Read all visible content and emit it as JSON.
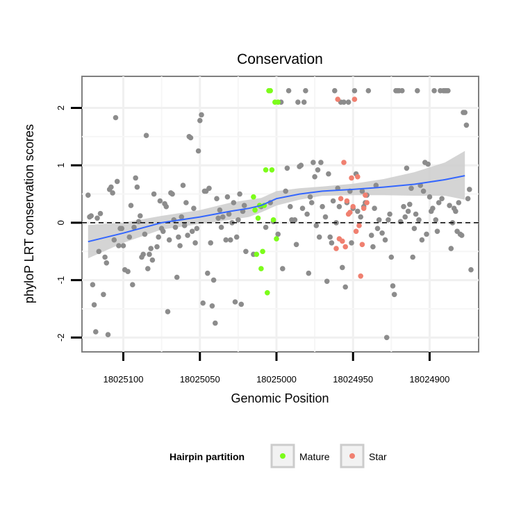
{
  "chart_data": {
    "type": "scatter",
    "title": "Conservation",
    "xlabel": "Genomic Position",
    "ylabel": "phyloP LRT conservation scores",
    "x_reversed": true,
    "xlim": [
      18025127,
      18024868
    ],
    "ylim": [
      -2.25,
      2.55
    ],
    "x_ticks": [
      18025100,
      18025050,
      18025000,
      18024950,
      18024900
    ],
    "x_tick_labels": [
      "18025100",
      "18025050",
      "18025000",
      "18024950",
      "18024900"
    ],
    "y_ticks": [
      -2,
      -1,
      0,
      1,
      2
    ],
    "y_tick_labels": [
      "-2",
      "-1",
      "0",
      "1",
      "2"
    ],
    "hline": 0,
    "grid": true,
    "legend": {
      "title": "Hairpin partition",
      "position": "bottom",
      "items": [
        {
          "label": "Mature",
          "color": "#7CFC1A"
        },
        {
          "label": "Star",
          "color": "#F08070"
        }
      ]
    },
    "colors": {
      "other": "#8C8C8C",
      "mature": "#7CFC1A",
      "star": "#F08070",
      "smooth_line": "#3366FF",
      "ribbon": "#CCCCCC"
    },
    "series": [
      {
        "group": "other",
        "points": [
          [
            18025123,
            0.48
          ],
          [
            18025122,
            0.1
          ],
          [
            18025121,
            0.12
          ],
          [
            18025120,
            -1.08
          ],
          [
            18025119,
            -1.43
          ],
          [
            18025118,
            -1.9
          ],
          [
            18025117,
            0.08
          ],
          [
            18025116,
            -0.5
          ],
          [
            18025115,
            0.16
          ],
          [
            18025113,
            -1.25
          ],
          [
            18025112,
            -0.6
          ],
          [
            18025111,
            -0.7
          ],
          [
            18025110,
            -1.95
          ],
          [
            18025109,
            0.58
          ],
          [
            18025108,
            0.62
          ],
          [
            18025107,
            0.52
          ],
          [
            18025106,
            -0.3
          ],
          [
            18025105,
            1.83
          ],
          [
            18025104,
            0.72
          ],
          [
            18025103,
            -0.4
          ],
          [
            18025102,
            -0.1
          ],
          [
            18025101,
            -0.1
          ],
          [
            18025100,
            -0.4
          ],
          [
            18025099,
            -0.82
          ],
          [
            18025097,
            -0.85
          ],
          [
            18025096,
            -0.25
          ],
          [
            18025095,
            0.3
          ],
          [
            18025094,
            -1.08
          ],
          [
            18025093,
            -0.08
          ],
          [
            18025092,
            0.78
          ],
          [
            18025091,
            0.62
          ],
          [
            18025090,
            0.02
          ],
          [
            18025089,
            0.12
          ],
          [
            18025088,
            -0.6
          ],
          [
            18025087,
            -0.55
          ],
          [
            18025086,
            -0.2
          ],
          [
            18025085,
            1.52
          ],
          [
            18025084,
            -0.8
          ],
          [
            18025083,
            -0.55
          ],
          [
            18025082,
            -0.45
          ],
          [
            18025081,
            -0.65
          ],
          [
            18025080,
            0.5
          ],
          [
            18025078,
            -0.42
          ],
          [
            18025077,
            -0.25
          ],
          [
            18025076,
            0.38
          ],
          [
            18025075,
            -0.1
          ],
          [
            18025074,
            -0.15
          ],
          [
            18025073,
            0.33
          ],
          [
            18025072,
            0.28
          ],
          [
            18025071,
            -1.55
          ],
          [
            18025070,
            -0.3
          ],
          [
            18025069,
            0.52
          ],
          [
            18025068,
            0.5
          ],
          [
            18025067,
            0.05
          ],
          [
            18025066,
            -0.08
          ],
          [
            18025065,
            -0.95
          ],
          [
            18025064,
            -0.25
          ],
          [
            18025063,
            -0.4
          ],
          [
            18025062,
            0.1
          ],
          [
            18025061,
            0.65
          ],
          [
            18025060,
            -0.05
          ],
          [
            18025059,
            0.35
          ],
          [
            18025058,
            -0.22
          ],
          [
            18025057,
            1.5
          ],
          [
            18025056,
            1.48
          ],
          [
            18025055,
            -0.15
          ],
          [
            18025054,
            0.25
          ],
          [
            18025053,
            -0.35
          ],
          [
            18025052,
            -0.1
          ],
          [
            18025051,
            1.25
          ],
          [
            18025050,
            1.78
          ],
          [
            18025049,
            1.88
          ],
          [
            18025048,
            -1.4
          ],
          [
            18025047,
            0.55
          ],
          [
            18025046,
            0.55
          ],
          [
            18025045,
            -0.88
          ],
          [
            18025044,
            0.6
          ],
          [
            18025043,
            -0.35
          ],
          [
            18025042,
            -1.45
          ],
          [
            18025041,
            -1.0
          ],
          [
            18025040,
            -1.75
          ],
          [
            18025039,
            0.42
          ],
          [
            18025038,
            0.08
          ],
          [
            18025037,
            0.22
          ],
          [
            18025036,
            -0.08
          ],
          [
            18025035,
            0.1
          ],
          [
            18025033,
            -0.3
          ],
          [
            18025032,
            0.45
          ],
          [
            18025031,
            0.15
          ],
          [
            18025030,
            -0.3
          ],
          [
            18025029,
            0.0
          ],
          [
            18025028,
            0.35
          ],
          [
            18025027,
            -1.38
          ],
          [
            18025026,
            -0.25
          ],
          [
            18025025,
            0.05
          ],
          [
            18025024,
            0.5
          ],
          [
            18025023,
            -1.42
          ],
          [
            18025022,
            0.2
          ],
          [
            18025021,
            0.3
          ],
          [
            18025020,
            -0.5
          ],
          [
            18025015,
            -0.55
          ],
          [
            18025010,
            0.28
          ],
          [
            18025007,
            -0.08
          ],
          [
            18025004,
            0.35
          ],
          [
            18025002,
            0.02
          ],
          [
            18024999,
            -0.2
          ],
          [
            18024997,
            2.1
          ],
          [
            18024996,
            -0.8
          ],
          [
            18024994,
            0.55
          ],
          [
            18024993,
            0.95
          ],
          [
            18024992,
            2.3
          ],
          [
            18024991,
            0.28
          ],
          [
            18024990,
            0.05
          ],
          [
            18024988,
            0.05
          ],
          [
            18024987,
            -0.38
          ],
          [
            18024986,
            2.1
          ],
          [
            18024985,
            0.98
          ],
          [
            18024984,
            1.0
          ],
          [
            18024983,
            0.25
          ],
          [
            18024982,
            2.1
          ],
          [
            18024981,
            2.3
          ],
          [
            18024980,
            0.15
          ],
          [
            18024979,
            -0.88
          ],
          [
            18024978,
            0.45
          ],
          [
            18024977,
            0.35
          ],
          [
            18024976,
            1.05
          ],
          [
            18024975,
            0.8
          ],
          [
            18024974,
            -0.05
          ],
          [
            18024973,
            0.92
          ],
          [
            18024972,
            -0.25
          ],
          [
            18024971,
            1.05
          ],
          [
            18024970,
            0.28
          ],
          [
            18024968,
            0.1
          ],
          [
            18024967,
            -1.02
          ],
          [
            18024966,
            0.85
          ],
          [
            18024965,
            -0.25
          ],
          [
            18024964,
            -0.35
          ],
          [
            18024963,
            0.38
          ],
          [
            18024962,
            2.3
          ],
          [
            18024961,
            0.0
          ],
          [
            18024960,
            0.6
          ],
          [
            18024959,
            0.28
          ],
          [
            18024958,
            2.1
          ],
          [
            18024957,
            -0.78
          ],
          [
            18024956,
            2.1
          ],
          [
            18024955,
            -1.12
          ],
          [
            18024954,
            0.35
          ],
          [
            18024953,
            2.1
          ],
          [
            18024952,
            0.55
          ],
          [
            18024951,
            -0.35
          ],
          [
            18024950,
            0.25
          ],
          [
            18024949,
            2.3
          ],
          [
            18024948,
            0.85
          ],
          [
            18024947,
            0.2
          ],
          [
            18024945,
            0.1
          ],
          [
            18024944,
            0.55
          ],
          [
            18024943,
            0.28
          ],
          [
            18024942,
            0.35
          ],
          [
            18024941,
            0.48
          ],
          [
            18024940,
            2.3
          ],
          [
            18024938,
            -0.22
          ],
          [
            18024937,
            -0.42
          ],
          [
            18024936,
            0.25
          ],
          [
            18024935,
            0.65
          ],
          [
            18024934,
            -0.1
          ],
          [
            18024933,
            0.05
          ],
          [
            18024931,
            -0.18
          ],
          [
            18024929,
            -0.3
          ],
          [
            18024928,
            -2.0
          ],
          [
            18024927,
            0.05
          ],
          [
            18024926,
            0.15
          ],
          [
            18024925,
            -0.6
          ],
          [
            18024924,
            -1.1
          ],
          [
            18024923,
            -1.25
          ],
          [
            18024922,
            2.3
          ],
          [
            18024921,
            2.3
          ],
          [
            18024920,
            2.3
          ],
          [
            18024919,
            0.02
          ],
          [
            18024918,
            2.3
          ],
          [
            18024917,
            0.28
          ],
          [
            18024916,
            0.1
          ],
          [
            18024915,
            0.95
          ],
          [
            18024914,
            0.2
          ],
          [
            18024913,
            0.32
          ],
          [
            18024912,
            0.6
          ],
          [
            18024911,
            -0.6
          ],
          [
            18024910,
            -0.1
          ],
          [
            18024909,
            0.15
          ],
          [
            18024908,
            2.3
          ],
          [
            18024907,
            0.05
          ],
          [
            18024906,
            0.65
          ],
          [
            18024905,
            -0.3
          ],
          [
            18024904,
            0.55
          ],
          [
            18024903,
            1.05
          ],
          [
            18024902,
            -0.2
          ],
          [
            18024901,
            1.02
          ],
          [
            18024900,
            0.45
          ],
          [
            18024899,
            0.2
          ],
          [
            18024898,
            0.25
          ],
          [
            18024897,
            2.3
          ],
          [
            18024896,
            0.05
          ],
          [
            18024895,
            -0.15
          ],
          [
            18024894,
            0.35
          ],
          [
            18024893,
            2.3
          ],
          [
            18024892,
            0.42
          ],
          [
            18024891,
            2.3
          ],
          [
            18024890,
            2.3
          ],
          [
            18024889,
            2.3
          ],
          [
            18024888,
            2.3
          ],
          [
            18024887,
            0.3
          ],
          [
            18024886,
            -0.45
          ],
          [
            18024885,
            0.0
          ],
          [
            18024884,
            0.25
          ],
          [
            18024883,
            0.2
          ],
          [
            18024882,
            -0.15
          ],
          [
            18024881,
            0.35
          ],
          [
            18024880,
            -0.2
          ],
          [
            18024879,
            -0.22
          ],
          [
            18024878,
            1.92
          ],
          [
            18024877,
            1.92
          ],
          [
            18024876,
            1.7
          ],
          [
            18024875,
            0.42
          ],
          [
            18024874,
            0.58
          ],
          [
            18024873,
            -0.82
          ]
        ]
      },
      {
        "group": "Mature",
        "points": [
          [
            18025015,
            0.45
          ],
          [
            18025014,
            0.22
          ],
          [
            18025013,
            -0.55
          ],
          [
            18025012,
            0.08
          ],
          [
            18025011,
            0.3
          ],
          [
            18025010,
            -0.8
          ],
          [
            18025009,
            -0.5
          ],
          [
            18025008,
            0.3
          ],
          [
            18025007,
            0.92
          ],
          [
            18025006,
            -1.22
          ],
          [
            18025005,
            2.3
          ],
          [
            18025004,
            2.3
          ],
          [
            18025003,
            0.92
          ],
          [
            18025002,
            0.05
          ],
          [
            18025001,
            2.1
          ],
          [
            18025000,
            -0.28
          ],
          [
            18024999,
            2.1
          ]
        ]
      },
      {
        "group": "Star",
        "points": [
          [
            18024961,
            -0.45
          ],
          [
            18024960,
            2.15
          ],
          [
            18024959,
            -0.28
          ],
          [
            18024958,
            0.42
          ],
          [
            18024957,
            -0.32
          ],
          [
            18024956,
            1.05
          ],
          [
            18024955,
            -0.42
          ],
          [
            18024954,
            0.38
          ],
          [
            18024953,
            0.15
          ],
          [
            18024952,
            0.18
          ],
          [
            18024951,
            0.78
          ],
          [
            18024950,
            0.28
          ],
          [
            18024949,
            2.15
          ],
          [
            18024948,
            -0.15
          ],
          [
            18024947,
            0.8
          ],
          [
            18024946,
            -0.05
          ],
          [
            18024945,
            -0.93
          ],
          [
            18024944,
            -0.38
          ],
          [
            18024943,
            0.25
          ],
          [
            18024942,
            0.48
          ],
          [
            18024941,
            0.35
          ]
        ]
      }
    ],
    "smooth": {
      "x": [
        18025123,
        18025100,
        18025075,
        18025050,
        18025030,
        18025018,
        18025010,
        18025000,
        18024985,
        18024970,
        18024950,
        18024930,
        18024910,
        18024890,
        18024877
      ],
      "y": [
        -0.33,
        -0.18,
        0.0,
        0.1,
        0.2,
        0.25,
        0.3,
        0.42,
        0.5,
        0.55,
        0.58,
        0.62,
        0.67,
        0.75,
        0.82
      ],
      "ci_lower": [
        -0.62,
        -0.35,
        -0.12,
        -0.02,
        0.05,
        0.1,
        0.18,
        0.3,
        0.4,
        0.47,
        0.48,
        0.48,
        0.47,
        0.47,
        0.4
      ],
      "ci_upper": [
        -0.04,
        0.0,
        0.12,
        0.22,
        0.35,
        0.4,
        0.43,
        0.55,
        0.6,
        0.63,
        0.68,
        0.76,
        0.88,
        1.05,
        1.25
      ]
    }
  }
}
